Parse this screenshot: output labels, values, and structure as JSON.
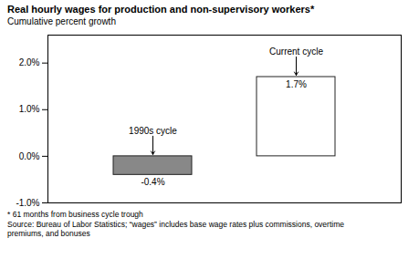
{
  "chart_data": {
    "type": "bar",
    "title": "Real hourly wages for production and non-supervisory workers*",
    "subtitle": "Cumulative percent growth",
    "categories": [
      "1990s cycle",
      "Current cycle"
    ],
    "values": [
      -0.4,
      1.7
    ],
    "value_labels": [
      "-0.4%",
      "1.7%"
    ],
    "data_labels": true,
    "colors": [
      "#888888",
      "#ffffff"
    ],
    "ylim": [
      -1.0,
      2.6
    ],
    "yticks": [
      {
        "value": -1.0,
        "label": "-1.0%"
      },
      {
        "value": 0.0,
        "label": "0.0%"
      },
      {
        "value": 1.0,
        "label": "1.0%"
      },
      {
        "value": 2.0,
        "label": "2.0%"
      }
    ],
    "grid": false,
    "tick_labels": "y",
    "footnotes": [
      "* 61 months from business cycle trough",
      "Source: Bureau of Labor Statistics; “wages” includes base wage rates plus commissions, overtime",
      "premiums, and bonuses"
    ]
  }
}
